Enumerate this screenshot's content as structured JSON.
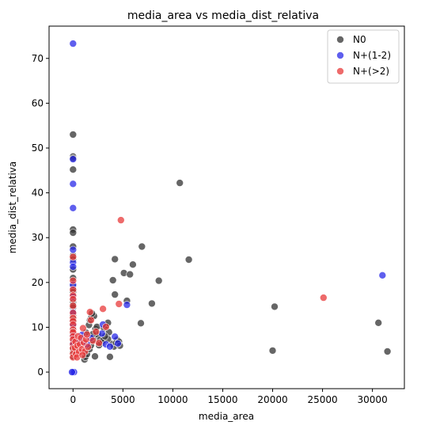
{
  "chart_data": {
    "type": "scatter",
    "title": "media_area vs media_dist_relativa",
    "xlabel": "media_area",
    "ylabel": "media_dist_relativa",
    "xlim": [
      -2400,
      33200
    ],
    "ylim": [
      -3.7,
      77.2
    ],
    "xticks": [
      0,
      5000,
      10000,
      15000,
      20000,
      25000,
      30000
    ],
    "yticks": [
      0,
      10,
      20,
      30,
      40,
      50,
      60,
      70
    ],
    "grid": false,
    "legend_position": "top-right",
    "series": [
      {
        "name": "N0",
        "color": "#333333",
        "points": [
          [
            0,
            53.0
          ],
          [
            0,
            48.1
          ],
          [
            0,
            47.7
          ],
          [
            0,
            45.2
          ],
          [
            0,
            31.8
          ],
          [
            0,
            31.1
          ],
          [
            0,
            28.0
          ],
          [
            0,
            26.0
          ],
          [
            0,
            25.2
          ],
          [
            0,
            22.9
          ],
          [
            0,
            21.0
          ],
          [
            0,
            19.2
          ],
          [
            0,
            18.5
          ],
          [
            0,
            17.9
          ],
          [
            0,
            17.0
          ],
          [
            0,
            16.1
          ],
          [
            0,
            15.5
          ],
          [
            0,
            15.0
          ],
          [
            0,
            14.4
          ],
          [
            0,
            13.4
          ],
          [
            0,
            12.6
          ],
          [
            0,
            11.9
          ],
          [
            0,
            11.3
          ],
          [
            0,
            10.6
          ],
          [
            0,
            9.8
          ],
          [
            0,
            9.0
          ],
          [
            0,
            8.3
          ],
          [
            0,
            7.5
          ],
          [
            0,
            6.8
          ],
          [
            0,
            6.0
          ],
          [
            0,
            5.2
          ],
          [
            0,
            4.4
          ],
          [
            0,
            3.5
          ],
          [
            0,
            0.0
          ],
          [
            1150,
            2.8
          ],
          [
            1250,
            3.4
          ],
          [
            1400,
            4.0
          ],
          [
            1650,
            5.1
          ],
          [
            1800,
            6.0
          ],
          [
            1950,
            7.2
          ],
          [
            2100,
            7.9
          ],
          [
            2250,
            9.6
          ],
          [
            1600,
            10.5
          ],
          [
            1700,
            11.6
          ],
          [
            1850,
            12.3
          ],
          [
            2100,
            12.5
          ],
          [
            1900,
            13.1
          ],
          [
            2400,
            10.1
          ],
          [
            2500,
            8.4
          ],
          [
            2700,
            7.2
          ],
          [
            2900,
            6.5
          ],
          [
            3100,
            9.8
          ],
          [
            3300,
            10.4
          ],
          [
            3500,
            11.0
          ],
          [
            3600,
            8.9
          ],
          [
            3900,
            6.3
          ],
          [
            4100,
            5.7
          ],
          [
            3700,
            3.4
          ],
          [
            2200,
            3.5
          ],
          [
            2600,
            6.0
          ],
          [
            3000,
            7.0
          ],
          [
            3500,
            7.4
          ],
          [
            4300,
            6.6
          ],
          [
            4400,
            7.2
          ],
          [
            4600,
            6.8
          ],
          [
            4700,
            5.9
          ],
          [
            4200,
            17.3
          ],
          [
            4200,
            25.2
          ],
          [
            4000,
            20.5
          ],
          [
            5100,
            22.1
          ],
          [
            5400,
            15.9
          ],
          [
            5700,
            21.8
          ],
          [
            6000,
            24.0
          ],
          [
            6900,
            28.0
          ],
          [
            6800,
            10.9
          ],
          [
            7900,
            15.3
          ],
          [
            8600,
            20.4
          ],
          [
            10700,
            42.2
          ],
          [
            11600,
            25.1
          ],
          [
            20000,
            4.8
          ],
          [
            20200,
            14.6
          ],
          [
            30600,
            11.0
          ],
          [
            31500,
            4.6
          ],
          [
            1300,
            8.8
          ],
          [
            2000,
            8.5
          ],
          [
            3200,
            8.0
          ]
        ]
      },
      {
        "name": "N+(1-2)",
        "color": "#2a2ae8",
        "points": [
          [
            0,
            73.3
          ],
          [
            0,
            47.5
          ],
          [
            0,
            42.0
          ],
          [
            0,
            36.6
          ],
          [
            0,
            27.3
          ],
          [
            0,
            24.5
          ],
          [
            0,
            23.5
          ],
          [
            0,
            19.5
          ],
          [
            0,
            16.8
          ],
          [
            0,
            13.4
          ],
          [
            0,
            10.5
          ],
          [
            0,
            8.3
          ],
          [
            0,
            6.5
          ],
          [
            0,
            0.0
          ],
          [
            100,
            0.0
          ],
          [
            -100,
            0.0
          ],
          [
            700,
            6.9
          ],
          [
            900,
            8.3
          ],
          [
            1400,
            6.2
          ],
          [
            1800,
            7.6
          ],
          [
            2900,
            8.6
          ],
          [
            3000,
            10.6
          ],
          [
            3300,
            6.2
          ],
          [
            3700,
            5.7
          ],
          [
            4200,
            7.9
          ],
          [
            4500,
            6.4
          ],
          [
            5400,
            15.0
          ],
          [
            31000,
            21.6
          ]
        ]
      },
      {
        "name": "N+(>2)",
        "color": "#e83a3a",
        "points": [
          [
            0,
            25.7
          ],
          [
            0,
            20.4
          ],
          [
            0,
            18.4
          ],
          [
            0,
            17.1
          ],
          [
            0,
            16.3
          ],
          [
            0,
            14.8
          ],
          [
            0,
            13.2
          ],
          [
            0,
            12.1
          ],
          [
            0,
            11.4
          ],
          [
            0,
            10.6
          ],
          [
            0,
            9.5
          ],
          [
            0,
            8.9
          ],
          [
            0,
            8.0
          ],
          [
            0,
            7.3
          ],
          [
            0,
            6.2
          ],
          [
            0,
            5.3
          ],
          [
            0,
            4.1
          ],
          [
            0,
            3.3
          ],
          [
            200,
            5.4
          ],
          [
            250,
            6.8
          ],
          [
            300,
            4.0
          ],
          [
            450,
            5.9
          ],
          [
            500,
            8.0
          ],
          [
            600,
            4.5
          ],
          [
            700,
            6.2
          ],
          [
            800,
            7.6
          ],
          [
            900,
            5.1
          ],
          [
            1000,
            9.8
          ],
          [
            1100,
            6.6
          ],
          [
            1200,
            4.6
          ],
          [
            1300,
            7.3
          ],
          [
            1400,
            8.4
          ],
          [
            1500,
            5.6
          ],
          [
            1700,
            13.4
          ],
          [
            1800,
            11.6
          ],
          [
            2000,
            7.0
          ],
          [
            2300,
            9.0
          ],
          [
            2600,
            6.5
          ],
          [
            3000,
            14.1
          ],
          [
            3300,
            10.1
          ],
          [
            4600,
            15.2
          ],
          [
            4800,
            33.9
          ],
          [
            25100,
            16.6
          ],
          [
            400,
            3.3
          ],
          [
            950,
            3.8
          ]
        ]
      }
    ]
  }
}
